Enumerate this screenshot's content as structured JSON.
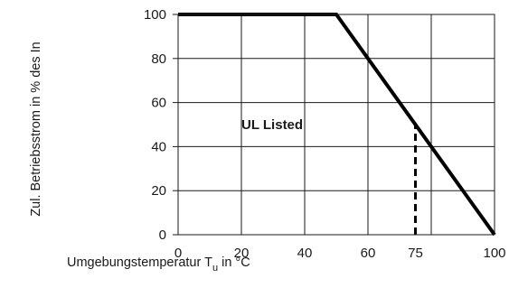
{
  "chart_data": {
    "type": "line",
    "title": "",
    "xlabel": "Umgebungstemperatur T",
    "xlabel_subscript": "u",
    "xlabel_suffix": " in °C",
    "ylabel": "Zul. Betriebsstrom in % des In",
    "xlim": [
      0,
      100
    ],
    "ylim": [
      0,
      100
    ],
    "x_tick_labels": [
      "0",
      "20",
      "40",
      "60",
      "75",
      "100"
    ],
    "y_tick_labels": [
      "0",
      "20",
      "40",
      "60",
      "80",
      "100"
    ],
    "grid": true,
    "series": [
      {
        "points": [
          [
            0,
            100
          ],
          [
            50,
            100
          ],
          [
            100,
            0
          ]
        ],
        "color": "#000000",
        "style": "solid"
      }
    ],
    "reference_lines": [
      {
        "points": [
          [
            75,
            0
          ],
          [
            75,
            50
          ]
        ],
        "style": "dashed",
        "color": "#000000"
      }
    ],
    "annotations": [
      {
        "text": "UL Listed",
        "x": 20,
        "y": 48
      }
    ]
  }
}
